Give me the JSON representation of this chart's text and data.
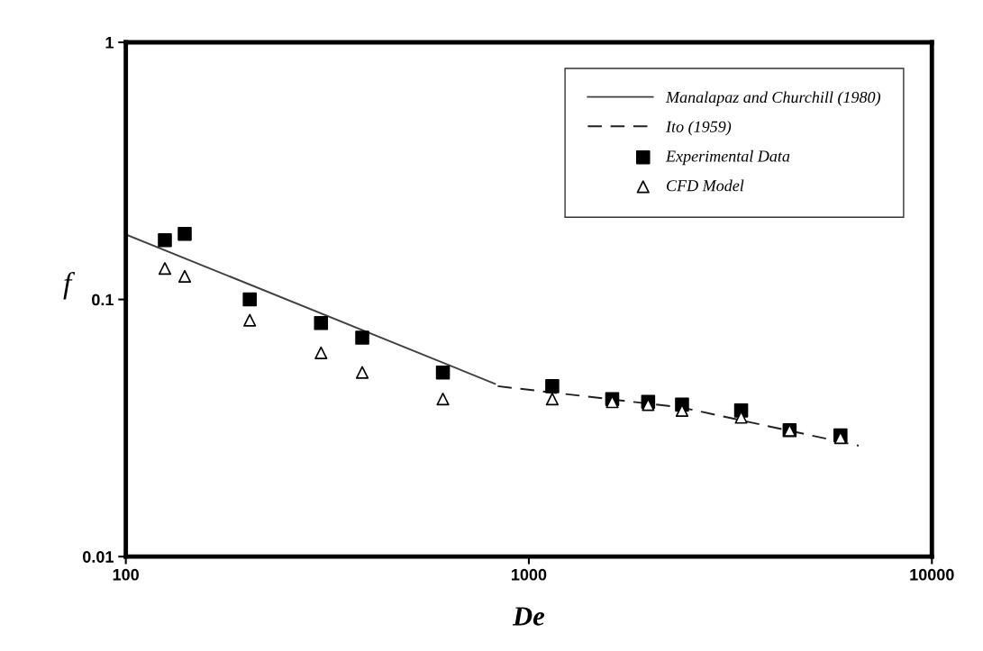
{
  "chart_data": {
    "type": "scatter",
    "xlabel": "De",
    "ylabel": "f",
    "log": "xy",
    "xlim": [
      100,
      10000
    ],
    "xticks": [
      100,
      1000,
      10000
    ],
    "ylim": [
      0.01,
      1
    ],
    "yticks": [
      0.01,
      0.1,
      1
    ],
    "grid": false,
    "legend": "top right",
    "series": [
      {
        "name": "Manalapaz and Churchill (1980)",
        "type": "line",
        "line_style": "solid",
        "marker": "none",
        "color": "#404040",
        "x": [
          100,
          824
        ],
        "values": [
          0.179,
          0.047
        ]
      },
      {
        "name": "Ito (1959)",
        "type": "line",
        "line_style": "dashed",
        "marker": "none",
        "color": "#202020",
        "x": [
          837,
          2399,
          6580
        ],
        "values": [
          0.046,
          0.038,
          0.027
        ]
      },
      {
        "name": "Experimental Data",
        "type": "scatter",
        "marker": "square",
        "color": "#000000",
        "x": [
          125,
          140,
          203,
          305,
          386,
          612,
          1143,
          1610,
          1977,
          2399,
          3363,
          4436,
          5932
        ],
        "values": [
          0.17,
          0.18,
          0.1,
          0.081,
          0.071,
          0.052,
          0.046,
          0.041,
          0.04,
          0.039,
          0.037,
          0.031,
          0.0296
        ]
      },
      {
        "name": "CFD Model",
        "type": "scatter",
        "marker": "triangle",
        "color": "#000000",
        "x": [
          125,
          140,
          203,
          305,
          386,
          612,
          1143,
          1610,
          1977,
          2399,
          3363,
          4436,
          5932
        ],
        "values": [
          0.132,
          0.123,
          0.083,
          0.062,
          0.052,
          0.041,
          0.041,
          0.04,
          0.039,
          0.037,
          0.0348,
          0.031,
          0.029
        ]
      }
    ]
  }
}
